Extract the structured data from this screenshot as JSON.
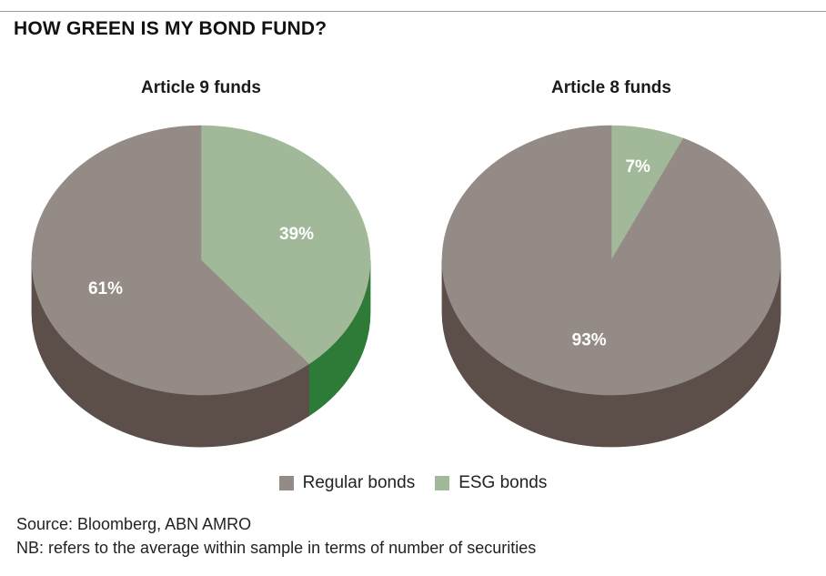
{
  "title": "HOW GREEN IS MY BOND FUND?",
  "source": "Source: Bloomberg, ABN AMRO",
  "note": "NB: refers to the average within sample in terms of number of securities",
  "colors": {
    "regular_top": "#948b87",
    "regular_side": "#5c4f4a",
    "esg_top": "#a1b999",
    "esg_side": "#2e7a37"
  },
  "chart_data": [
    {
      "type": "pie",
      "title": "Article 9 funds",
      "style": "3d",
      "legend": "bottom",
      "slices": [
        {
          "label": "Regular bonds",
          "value": 61,
          "display": "61%"
        },
        {
          "label": "ESG bonds",
          "value": 39,
          "display": "39%"
        }
      ]
    },
    {
      "type": "pie",
      "title": "Article 8 funds",
      "style": "3d",
      "legend": "bottom",
      "slices": [
        {
          "label": "Regular bonds",
          "value": 93,
          "display": "93%"
        },
        {
          "label": "ESG bonds",
          "value": 7,
          "display": "7%"
        }
      ]
    }
  ],
  "legend": [
    {
      "label": "Regular bonds"
    },
    {
      "label": "ESG bonds"
    }
  ]
}
